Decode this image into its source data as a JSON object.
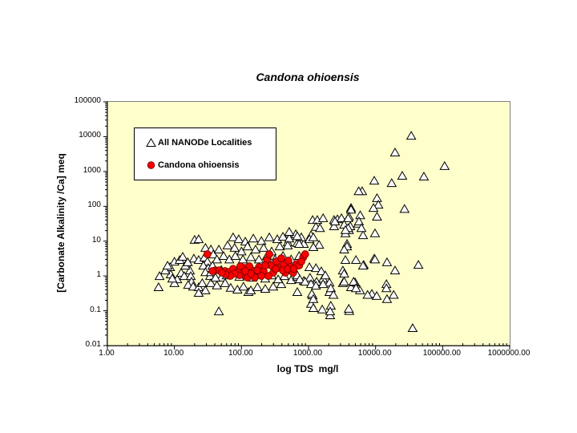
{
  "title": "Candona ohioensis",
  "legend": {
    "items": [
      {
        "label": "All NANODe Localities",
        "marker": "triangle"
      },
      {
        "label": "Candona ohioensis",
        "marker": "circle"
      }
    ]
  },
  "chart_data": {
    "type": "scatter",
    "title": "Candona ohioensis",
    "xlabel": "log TDS  mg/l",
    "ylabel": "[Carbonate Alkalinity /Ca] meq",
    "x_scale": "log",
    "y_scale": "log",
    "xlim": [
      1,
      1000000
    ],
    "ylim": [
      0.01,
      100000
    ],
    "grid": false,
    "legend_position": "inside-top-left",
    "plot_bg": "#FFFFCC",
    "x_ticks": [
      {
        "v": 1,
        "label": "1.00"
      },
      {
        "v": 10,
        "label": "10.00"
      },
      {
        "v": 100,
        "label": "100.00"
      },
      {
        "v": 1000,
        "label": "1000.00"
      },
      {
        "v": 10000,
        "label": "10000.00"
      },
      {
        "v": 100000,
        "label": "100000.00"
      },
      {
        "v": 1000000,
        "label": "1000000.00"
      }
    ],
    "y_ticks": [
      {
        "v": 100000,
        "label": "100000"
      },
      {
        "v": 10000,
        "label": "10000"
      },
      {
        "v": 1000,
        "label": "1000"
      },
      {
        "v": 100,
        "label": "100"
      },
      {
        "v": 10,
        "label": "10"
      },
      {
        "v": 1,
        "label": "1"
      },
      {
        "v": 0.1,
        "label": "0.1"
      },
      {
        "v": 0.01,
        "label": "0.01"
      }
    ],
    "series": [
      {
        "name": "All NANODe Localities",
        "marker": "triangle",
        "fill": "#FFFFFF",
        "edge": "#000000",
        "points": [
          [
            34000,
            10700
          ],
          [
            19500,
            3550
          ],
          [
            107000,
            1450
          ],
          [
            25000,
            760
          ],
          [
            52500,
            720
          ],
          [
            9550,
            550
          ],
          [
            17400,
            470
          ],
          [
            6300,
            275
          ],
          [
            5600,
            275
          ],
          [
            10500,
            174
          ],
          [
            11000,
            112
          ],
          [
            9300,
            91
          ],
          [
            4300,
            91
          ],
          [
            4300,
            81
          ],
          [
            27000,
            85
          ],
          [
            4000,
            51
          ],
          [
            5900,
            56
          ],
          [
            10500,
            51
          ],
          [
            5500,
            32
          ],
          [
            4200,
            27
          ],
          [
            4000,
            21
          ],
          [
            6500,
            15
          ],
          [
            9800,
            17
          ],
          [
            1150,
            41
          ],
          [
            1350,
            41
          ],
          [
            1650,
            46
          ],
          [
            2400,
            41
          ],
          [
            2700,
            43
          ],
          [
            3100,
            46
          ],
          [
            3900,
            46
          ],
          [
            1290,
            26
          ],
          [
            1480,
            24
          ],
          [
            2400,
            27
          ],
          [
            3400,
            30
          ],
          [
            3900,
            24
          ],
          [
            3550,
            17
          ],
          [
            515,
            17
          ],
          [
            645,
            16
          ],
          [
            1090,
            15
          ],
          [
            490,
            9.3
          ],
          [
            680,
            8.9
          ],
          [
            850,
            8.4
          ],
          [
            1440,
            7.9
          ],
          [
            3750,
            8.4
          ],
          [
            2480,
            37
          ],
          [
            5650,
            37
          ],
          [
            6150,
            24
          ],
          [
            3550,
            21
          ],
          [
            3750,
            7.1
          ],
          [
            3550,
            2.9
          ],
          [
            5100,
            2.9
          ],
          [
            6650,
            2.1
          ],
          [
            9550,
            3.2
          ],
          [
            14800,
            2.5
          ],
          [
            19500,
            1.45
          ],
          [
            43500,
            2.1
          ],
          [
            3250,
            1.45
          ],
          [
            3250,
            0.63
          ],
          [
            4300,
            0.48
          ],
          [
            4950,
            0.66
          ],
          [
            5850,
            0.39
          ],
          [
            8800,
            0.31
          ],
          [
            10400,
            0.27
          ],
          [
            14500,
            0.59
          ],
          [
            14500,
            0.45
          ],
          [
            14800,
            0.22
          ],
          [
            18600,
            0.29
          ],
          [
            4050,
            0.1
          ],
          [
            35700,
            0.032
          ],
          [
            46,
            0.097
          ],
          [
            127,
            0.35
          ],
          [
            680,
            0.35
          ],
          [
            1150,
            0.28
          ],
          [
            1090,
            0.16
          ],
          [
            1600,
            0.11
          ],
          [
            2100,
            0.075
          ],
          [
            2050,
            0.35
          ],
          [
            3980,
            0.115
          ],
          [
            5.8,
            0.48
          ],
          [
            8.8,
            1.12
          ],
          [
            10,
            2.6
          ],
          [
            12,
            2.9
          ],
          [
            13.3,
            3.6
          ],
          [
            8.6,
            1.8
          ],
          [
            11,
            0.81
          ],
          [
            10,
            0.63
          ],
          [
            12.6,
            1.24
          ],
          [
            14,
            1.0
          ],
          [
            17,
            1.45
          ],
          [
            17.5,
            1.0
          ],
          [
            18,
            0.69
          ],
          [
            16,
            0.56
          ],
          [
            19,
            0.5
          ],
          [
            23,
            0.48
          ],
          [
            26,
            0.63
          ],
          [
            19.5,
            3.2
          ],
          [
            23,
            2.9
          ],
          [
            28,
            3.4
          ],
          [
            31,
            2.6
          ],
          [
            27,
            2.0
          ],
          [
            32,
            1.7
          ],
          [
            29,
            1.3
          ],
          [
            34,
            1.0
          ],
          [
            29,
            0.39
          ],
          [
            23,
            0.33
          ],
          [
            20,
            11
          ],
          [
            23,
            11.5
          ],
          [
            29,
            6.5
          ],
          [
            35,
            5.8
          ],
          [
            6,
            1.0
          ],
          [
            7.3,
            1.45
          ],
          [
            7.9,
            2.0
          ],
          [
            9.3,
            0.85
          ],
          [
            14.5,
            2.0
          ],
          [
            15.8,
            2.5
          ],
          [
            38,
            4.2
          ],
          [
            43,
            3.0
          ],
          [
            37,
            2.0
          ],
          [
            35,
            1.3
          ],
          [
            35,
            0.63
          ],
          [
            43,
            0.54
          ],
          [
            50,
            0.9
          ],
          [
            57,
            0.63
          ],
          [
            69,
            0.46
          ],
          [
            87,
            0.41
          ],
          [
            107,
            0.5
          ],
          [
            138,
            0.39
          ],
          [
            173,
            0.48
          ],
          [
            226,
            0.43
          ],
          [
            297,
            0.5
          ],
          [
            392,
            0.59
          ],
          [
            75,
            13
          ],
          [
            91,
            11.5
          ],
          [
            114,
            9.8
          ],
          [
            150,
            12
          ],
          [
            198,
            10.2
          ],
          [
            260,
            13
          ],
          [
            342,
            11.5
          ],
          [
            415,
            13.5
          ],
          [
            515,
            12
          ],
          [
            780,
            13
          ],
          [
            1030,
            11.5
          ],
          [
            62,
            7.6
          ],
          [
            79,
            6.5
          ],
          [
            100,
            5.1
          ],
          [
            123,
            7.1
          ],
          [
            162,
            5.8
          ],
          [
            214,
            6.5
          ],
          [
            282,
            5.1
          ],
          [
            372,
            7.1
          ],
          [
            46,
            5.8
          ],
          [
            54,
            3.8
          ],
          [
            66,
            3.0
          ],
          [
            81,
            3.8
          ],
          [
            105,
            3.0
          ],
          [
            138,
            3.5
          ],
          [
            182,
            3.0
          ],
          [
            240,
            3.8
          ],
          [
            316,
            3.0
          ],
          [
            415,
            3.8
          ],
          [
            550,
            3.0
          ],
          [
            725,
            3.8
          ],
          [
            41,
            0.9
          ],
          [
            50,
            1.5
          ],
          [
            60,
            1.05
          ],
          [
            75,
            1.3
          ],
          [
            93,
            0.95
          ],
          [
            117,
            1.17
          ],
          [
            145,
            0.9
          ],
          [
            182,
            1.11
          ],
          [
            226,
            0.85
          ],
          [
            282,
            1.05
          ],
          [
            352,
            0.81
          ],
          [
            437,
            1.0
          ],
          [
            550,
            0.77
          ],
          [
            680,
            0.95
          ],
          [
            850,
            0.73
          ],
          [
            1050,
            0.9
          ],
          [
            1320,
            0.69
          ],
          [
            1650,
            0.85
          ],
          [
            2050,
            0.65
          ],
          [
            515,
            18.6
          ],
          [
            680,
            14
          ],
          [
            1180,
            13
          ],
          [
            490,
            7.6
          ],
          [
            725,
            8.4
          ],
          [
            1180,
            6.8
          ],
          [
            1030,
            1.8
          ],
          [
            1290,
            1.7
          ],
          [
            1550,
            1.38
          ],
          [
            1780,
            1.05
          ],
          [
            590,
            1.5
          ],
          [
            680,
            1.05
          ],
          [
            740,
            0.81
          ],
          [
            890,
            0.69
          ],
          [
            1090,
            0.59
          ],
          [
            1290,
            0.53
          ],
          [
            1650,
            0.59
          ],
          [
            1120,
            0.31
          ],
          [
            3400,
            5.8
          ],
          [
            6500,
            2.0
          ],
          [
            9800,
            3.0
          ],
          [
            3400,
            1.17
          ],
          [
            4700,
            0.69
          ],
          [
            3400,
            0.69
          ],
          [
            5100,
            0.45
          ],
          [
            7600,
            0.29
          ],
          [
            2150,
            0.45
          ],
          [
            2350,
            0.29
          ],
          [
            1180,
            0.22
          ],
          [
            2150,
            0.142
          ],
          [
            1180,
            0.121
          ],
          [
            2100,
            0.097
          ]
        ]
      },
      {
        "name": "Candona ohioensis",
        "marker": "circle",
        "fill": "#FF0000",
        "edge": "#7F0000",
        "points": [
          [
            31,
            4.2
          ],
          [
            41,
            1.45
          ],
          [
            57,
            1.38
          ],
          [
            66,
            1.3
          ],
          [
            110,
            1.7
          ],
          [
            110,
            1.05
          ],
          [
            145,
            1.45
          ],
          [
            162,
            1.11
          ],
          [
            182,
            1.8
          ],
          [
            214,
            1.38
          ],
          [
            240,
            2.9
          ],
          [
            260,
            4.2
          ],
          [
            275,
            2.0
          ],
          [
            297,
            1.24
          ],
          [
            332,
            2.6
          ],
          [
            352,
            1.7
          ],
          [
            392,
            3.2
          ],
          [
            425,
            2.1
          ],
          [
            450,
            1.24
          ],
          [
            500,
            2.75
          ],
          [
            535,
            1.8
          ],
          [
            590,
            1.24
          ],
          [
            660,
            2.2
          ],
          [
            830,
            3.4
          ],
          [
            252,
            1.0
          ],
          [
            198,
            1.0
          ],
          [
            158,
            0.9
          ],
          [
            123,
            0.9
          ],
          [
            47,
            1.45
          ],
          [
            75,
            1.6
          ],
          [
            89,
            1.3
          ],
          [
            96,
            1.9
          ],
          [
            131,
            1.9
          ],
          [
            324,
            1.6
          ],
          [
            415,
            1.45
          ],
          [
            490,
            1.6
          ],
          [
            605,
            1.6
          ],
          [
            725,
            2.0
          ],
          [
            780,
            2.6
          ],
          [
            226,
            2.0
          ],
          [
            173,
            1.45
          ],
          [
            138,
            1.17
          ],
          [
            114,
            1.38
          ],
          [
            93,
            1.05
          ],
          [
            79,
            1.17
          ],
          [
            68,
            1.0
          ],
          [
            58,
            1.11
          ],
          [
            51,
            1.24
          ],
          [
            37,
            1.38
          ],
          [
            890,
            4.2
          ]
        ]
      }
    ]
  }
}
